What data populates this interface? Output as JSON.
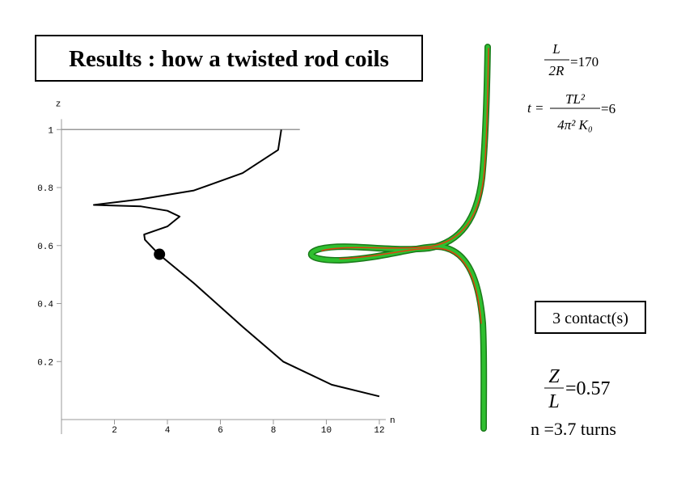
{
  "title": "Results : how a twisted rod coils",
  "chart_data": {
    "type": "line",
    "x_label": "n",
    "y_label": "z",
    "xlim": [
      0,
      12
    ],
    "ylim": [
      0,
      1.05
    ],
    "xticks": [
      2,
      4,
      6,
      8,
      10,
      12
    ],
    "yticks": [
      0.2,
      0.4,
      0.6,
      0.8,
      1
    ],
    "reference_line": {
      "y": 1,
      "x_end": 9
    },
    "series": [
      {
        "color": "#000000",
        "x": [
          8.3,
          8.18,
          6.84,
          5.0,
          3.0,
          1.22,
          3.0,
          4.0,
          4.46,
          4.0,
          3.12,
          3.15,
          3.69,
          5.0,
          6.84,
          8.37,
          10.2,
          12
        ],
        "values": [
          1.0,
          0.93,
          0.85,
          0.79,
          0.76,
          0.74,
          0.735,
          0.72,
          0.7,
          0.666,
          0.638,
          0.62,
          0.569,
          0.47,
          0.32,
          0.2,
          0.12,
          0.08
        ]
      }
    ],
    "marker": {
      "x": 3.7,
      "y": 0.57
    }
  },
  "formulas": [
    {
      "lhs": "",
      "numerator": "L",
      "denominator": "2R",
      "rhs": "=170"
    },
    {
      "lhs": "t =",
      "numerator": "TL²",
      "denominator": "4π² K₀",
      "rhs": "=6"
    }
  ],
  "contacts": "3 contact(s)",
  "result": {
    "numerator": "Z",
    "denominator": "L",
    "rhs": "=0.57"
  },
  "turns": "n =3.7 turns"
}
